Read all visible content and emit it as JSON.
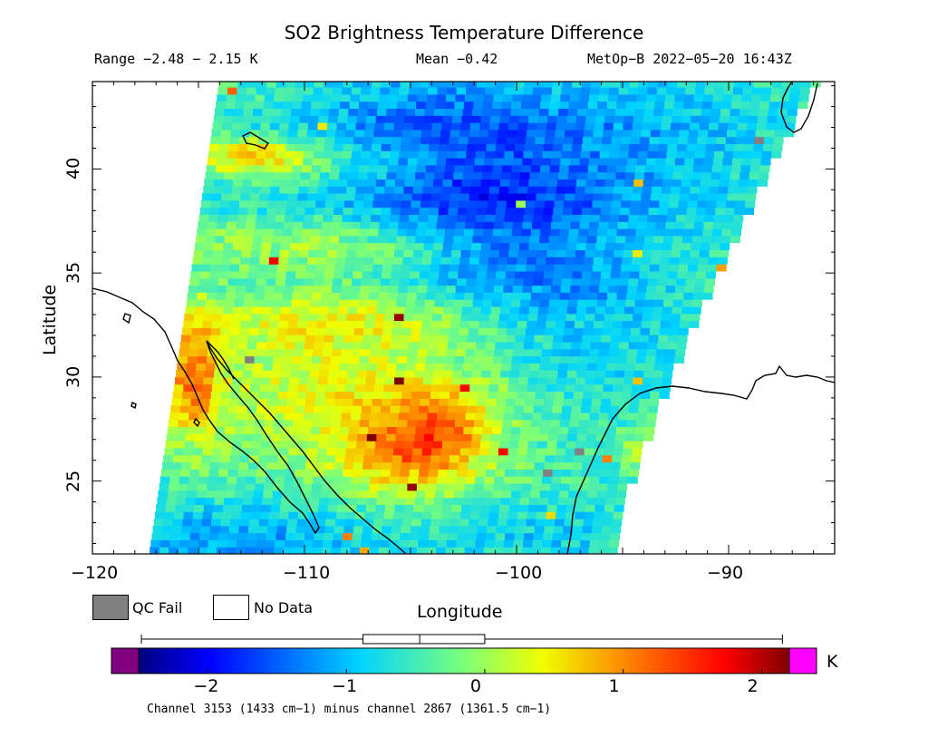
{
  "title": "SO2 Brightness Temperature Difference",
  "range_text": "Range −2.48 − 2.15 K",
  "mean_text": "Mean −0.42",
  "satellite_time": "MetOp−B 2022−05−20 16:43Z",
  "axes": {
    "xlabel": "Longitude",
    "ylabel": "Latitude",
    "xticks": [
      "−120",
      "−110",
      "−100",
      "−90"
    ],
    "yticks": [
      "40",
      "35",
      "30",
      "25"
    ],
    "xlim": [
      -120,
      -85
    ],
    "ylim": [
      21.5,
      44.2
    ]
  },
  "legend": {
    "qc_fail_label": "QC Fail",
    "qc_fail_color": "#808080",
    "no_data_label": "No Data",
    "no_data_color": "#ffffff"
  },
  "colorbar": {
    "ticks": [
      "−2",
      "−1",
      "0",
      "1",
      "2"
    ],
    "unit": "K",
    "vmin": -2.5,
    "vmax": 2.2,
    "under_color": "#800080",
    "over_color": "#ff00ff",
    "box_stats": {
      "min": -2.48,
      "q1": -0.88,
      "median": -0.47,
      "q3": 0.0,
      "max": 2.15
    },
    "caption": "Channel 3153 (1433 cm−1) minus channel 2867 (1361.5 cm−1)"
  },
  "colors": {
    "coastline": "#000000",
    "frame": "#000000"
  }
}
